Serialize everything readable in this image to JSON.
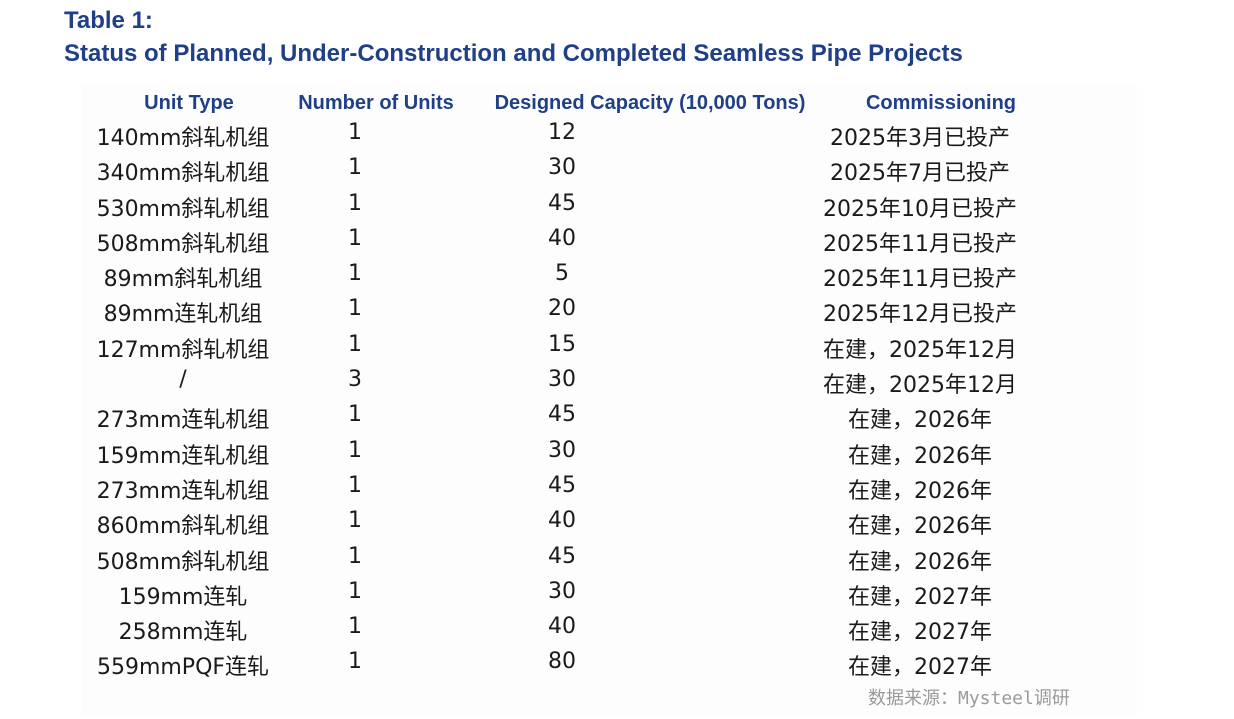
{
  "title": {
    "line1": "Table 1:",
    "line2": "Status of Planned, Under-Construction and Completed Seamless Pipe Projects"
  },
  "headers": {
    "unit_type": "Unit Type",
    "number_of_units": "Number of Units",
    "designed_capacity": "Designed Capacity (10,000 Tons)",
    "commissioning": "Commissioning"
  },
  "rows": [
    {
      "unit_type": "140mm斜轧机组",
      "number": "1",
      "capacity": "12",
      "commissioning": "2025年3月已投产"
    },
    {
      "unit_type": "340mm斜轧机组",
      "number": "1",
      "capacity": "30",
      "commissioning": "2025年7月已投产"
    },
    {
      "unit_type": "530mm斜轧机组",
      "number": "1",
      "capacity": "45",
      "commissioning": "2025年10月已投产"
    },
    {
      "unit_type": "508mm斜轧机组",
      "number": "1",
      "capacity": "40",
      "commissioning": "2025年11月已投产"
    },
    {
      "unit_type": "89mm斜轧机组",
      "number": "1",
      "capacity": "5",
      "commissioning": "2025年11月已投产"
    },
    {
      "unit_type": "89mm连轧机组",
      "number": "1",
      "capacity": "20",
      "commissioning": "2025年12月已投产"
    },
    {
      "unit_type": "127mm斜轧机组",
      "number": "1",
      "capacity": "15",
      "commissioning": "在建，2025年12月"
    },
    {
      "unit_type": "/",
      "number": "3",
      "capacity": "30",
      "commissioning": "在建，2025年12月"
    },
    {
      "unit_type": "273mm连轧机组",
      "number": "1",
      "capacity": "45",
      "commissioning": "在建，2026年"
    },
    {
      "unit_type": "159mm连轧机组",
      "number": "1",
      "capacity": "30",
      "commissioning": "在建，2026年"
    },
    {
      "unit_type": "273mm连轧机组",
      "number": "1",
      "capacity": "45",
      "commissioning": "在建，2026年"
    },
    {
      "unit_type": "860mm斜轧机组",
      "number": "1",
      "capacity": "40",
      "commissioning": "在建，2026年"
    },
    {
      "unit_type": "508mm斜轧机组",
      "number": "1",
      "capacity": "45",
      "commissioning": "在建，2026年"
    },
    {
      "unit_type": "159mm连轧",
      "number": "1",
      "capacity": "30",
      "commissioning": "在建，2027年"
    },
    {
      "unit_type": "258mm连轧",
      "number": "1",
      "capacity": "40",
      "commissioning": "在建，2027年"
    },
    {
      "unit_type": "559mmPQF连轧",
      "number": "1",
      "capacity": "80",
      "commissioning": "在建，2027年"
    }
  ],
  "source": "数据来源：Mysteel调研"
}
